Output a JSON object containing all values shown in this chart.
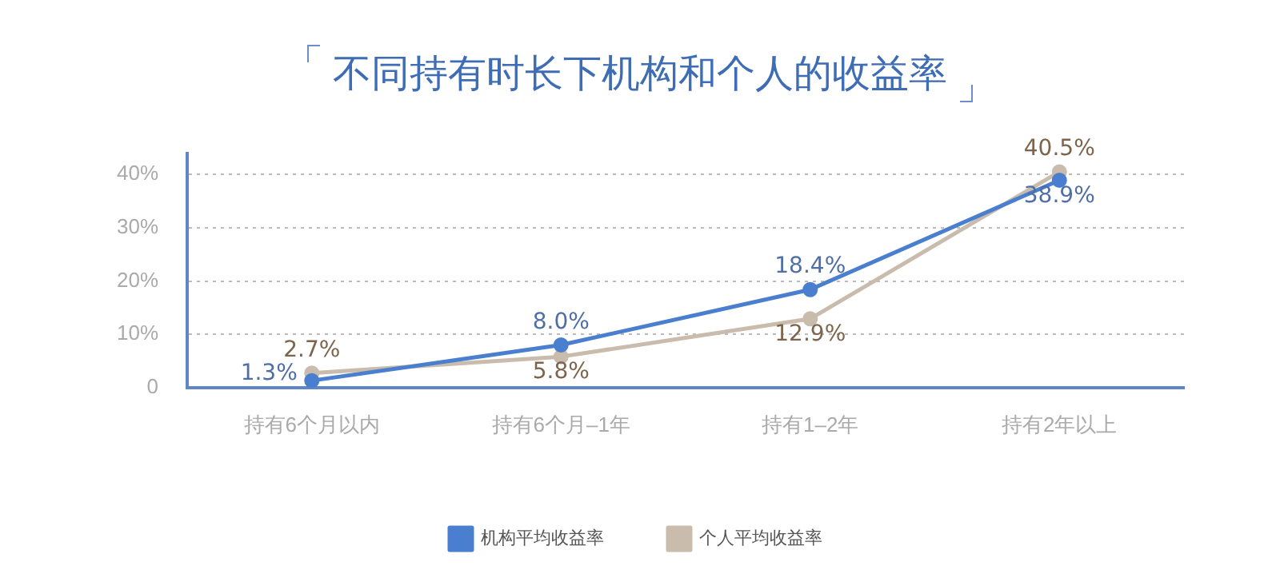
{
  "chart_data": {
    "type": "line",
    "title": "不同持有时长下机构和个人的收益率",
    "categories": [
      "持有6个月以内",
      "持有6个月–1年",
      "持有1–2年",
      "持有2年以上"
    ],
    "series": [
      {
        "name": "机构平均收益率",
        "color": "#4a7fd0",
        "values": [
          1.3,
          8.0,
          18.4,
          38.9
        ]
      },
      {
        "name": "个人平均收益率",
        "color": "#c9bcac",
        "values": [
          2.7,
          5.8,
          12.9,
          40.5
        ]
      }
    ],
    "ylim": [
      0,
      44
    ],
    "yticks": [
      {
        "value": 0,
        "label": "0"
      },
      {
        "value": 10,
        "label": "10%"
      },
      {
        "value": 20,
        "label": "20%"
      },
      {
        "value": 30,
        "label": "30%"
      },
      {
        "value": 40,
        "label": "40%"
      }
    ],
    "value_labels": [
      [
        "1.3%",
        "8.0%",
        "18.4%",
        "38.9%"
      ],
      [
        "2.7%",
        "5.8%",
        "12.9%",
        "40.5%"
      ]
    ],
    "grid": "y",
    "legend": "bottom",
    "marker": "circle",
    "line_style": "solid"
  }
}
